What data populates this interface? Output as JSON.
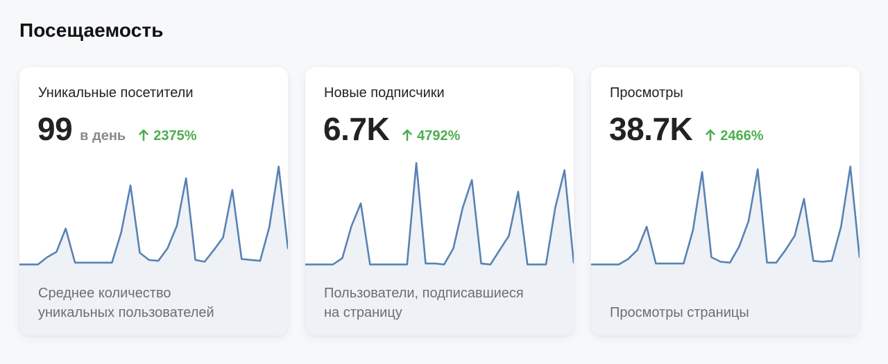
{
  "section": {
    "title": "Посещаемость"
  },
  "cards": [
    {
      "title": "Уникальные посетители",
      "value": "99",
      "unit": "в день",
      "change": "2375%",
      "desc_line1": "Среднее количество",
      "desc_line2": "уникальных пользователей",
      "trend": [
        2,
        2,
        2,
        10,
        16,
        42,
        4,
        4,
        4,
        4,
        4,
        38,
        90,
        15,
        7,
        6,
        20,
        45,
        98,
        7,
        5,
        18,
        32,
        85,
        8,
        7,
        6,
        44,
        111,
        20
      ]
    },
    {
      "title": "Новые подписчики",
      "value": "6.7K",
      "unit": "",
      "change": "4792%",
      "desc_line1": "Пользователи, подписавшиеся",
      "desc_line2": "на страницу",
      "trend": [
        2,
        2,
        2,
        2,
        9,
        45,
        70,
        2,
        2,
        2,
        2,
        2,
        115,
        3,
        3,
        2,
        20,
        65,
        96,
        3,
        2,
        18,
        34,
        83,
        2,
        2,
        2,
        65,
        107,
        4
      ]
    },
    {
      "title": "Просмотры",
      "value": "38.7K",
      "unit": "",
      "change": "2466%",
      "desc_line1": "Просмотры страницы",
      "desc_line2": "",
      "trend": [
        2,
        2,
        2,
        2,
        8,
        18,
        44,
        3,
        3,
        3,
        3,
        40,
        105,
        10,
        5,
        4,
        22,
        50,
        108,
        4,
        4,
        18,
        34,
        75,
        6,
        5,
        6,
        44,
        111,
        10
      ]
    }
  ],
  "colors": {
    "accent_line": "#5882b3",
    "positive": "#4cae4f",
    "chart_fill": "#eef1f6"
  },
  "icons": {
    "change": "arrow-up-icon"
  }
}
